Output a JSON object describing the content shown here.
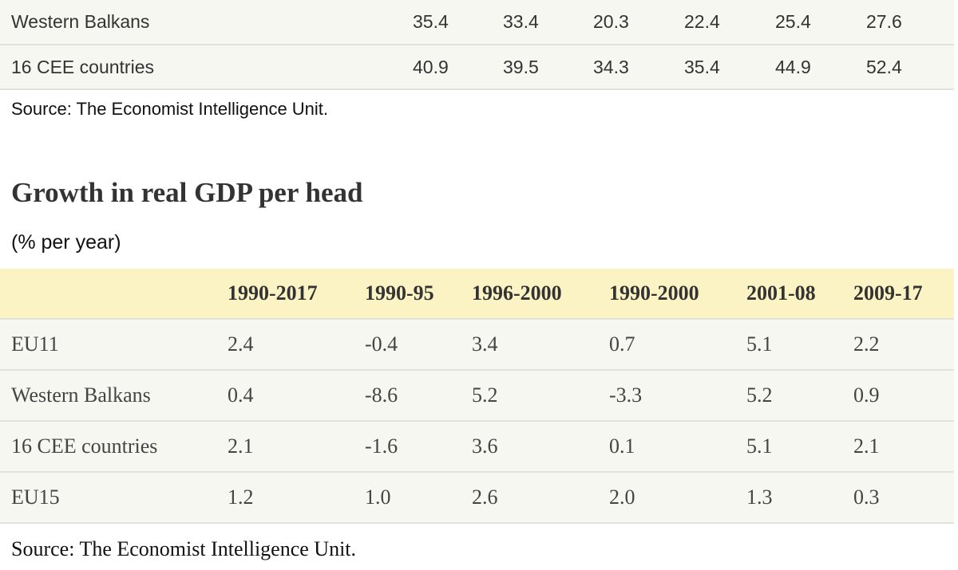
{
  "top_table": {
    "rows": [
      {
        "label": "Western Balkans",
        "values": [
          "35.4",
          "33.4",
          "20.3",
          "22.4",
          "25.4",
          "27.6"
        ]
      },
      {
        "label": "16 CEE countries",
        "values": [
          "40.9",
          "39.5",
          "34.3",
          "35.4",
          "44.9",
          "52.4"
        ]
      }
    ],
    "source": "Source: The Economist Intelligence Unit."
  },
  "growth_table": {
    "title": "Growth in real GDP per head",
    "subtitle": "(% per year)",
    "columns": [
      "1990-2017",
      "1990-95",
      "1996-2000",
      "1990-2000",
      "2001-08",
      "2009-17"
    ],
    "rows": [
      {
        "label": "EU11",
        "values": [
          "2.4",
          "-0.4",
          "3.4",
          "0.7",
          "5.1",
          "2.2"
        ]
      },
      {
        "label": "Western Balkans",
        "values": [
          "0.4",
          "-8.6",
          "5.2",
          "-3.3",
          "5.2",
          "0.9"
        ]
      },
      {
        "label": "16 CEE countries",
        "values": [
          "2.1",
          "-1.6",
          "3.6",
          "0.1",
          "5.1",
          "2.1"
        ]
      },
      {
        "label": "EU15",
        "values": [
          "1.2",
          "1.0",
          "2.6",
          "2.0",
          "1.3",
          "0.3"
        ]
      }
    ],
    "source": "Source: The Economist Intelligence Unit."
  },
  "colors": {
    "header_bg": "#fbf3c4",
    "row_bg": "#f7f7f2",
    "row_border": "#e2e2dc"
  }
}
